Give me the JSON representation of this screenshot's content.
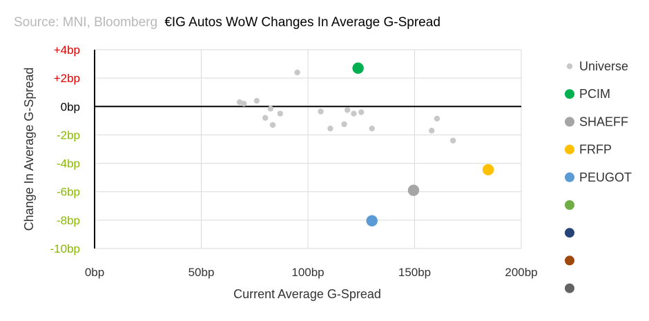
{
  "chart_data": {
    "type": "scatter",
    "title_source": "Source: MNI, Bloomberg",
    "title": "€IG Autos WoW Changes In Average G-Spread",
    "xlabel": "Current Average G-Spread",
    "ylabel": "Change In Average G-Spread",
    "xlim": [
      0,
      200
    ],
    "ylim": [
      -10,
      4
    ],
    "x_ticks": [
      {
        "value": 0,
        "label": "0bp"
      },
      {
        "value": 50,
        "label": "50bp"
      },
      {
        "value": 100,
        "label": "100bp"
      },
      {
        "value": 150,
        "label": "150bp"
      },
      {
        "value": 200,
        "label": "200bp"
      }
    ],
    "y_ticks": [
      {
        "value": 4,
        "label": "+4bp",
        "color": "#e00000"
      },
      {
        "value": 2,
        "label": "+2bp",
        "color": "#e00000"
      },
      {
        "value": 0,
        "label": "0bp",
        "color": "#000000"
      },
      {
        "value": -2,
        "label": "-2bp",
        "color": "#8ab800"
      },
      {
        "value": -4,
        "label": "-4bp",
        "color": "#8ab800"
      },
      {
        "value": -6,
        "label": "-6bp",
        "color": "#8ab800"
      },
      {
        "value": -8,
        "label": "-8bp",
        "color": "#8ab800"
      },
      {
        "value": -10,
        "label": "-10bp",
        "color": "#8ab800"
      }
    ],
    "grid": true,
    "legend_position": "right",
    "series": [
      {
        "name": "Universe",
        "color": "#c8c8c8",
        "size": "small",
        "points": [
          {
            "x": 68,
            "y": 0.3
          },
          {
            "x": 70,
            "y": 0.2
          },
          {
            "x": 76,
            "y": 0.4
          },
          {
            "x": 80,
            "y": -0.8
          },
          {
            "x": 82.5,
            "y": -0.15
          },
          {
            "x": 83.5,
            "y": -1.3
          },
          {
            "x": 87,
            "y": -0.5
          },
          {
            "x": 95,
            "y": 2.4
          },
          {
            "x": 106,
            "y": -0.35
          },
          {
            "x": 110.5,
            "y": -1.55
          },
          {
            "x": 117,
            "y": -1.25
          },
          {
            "x": 118.5,
            "y": -0.25
          },
          {
            "x": 121.5,
            "y": -0.5
          },
          {
            "x": 125,
            "y": -0.4
          },
          {
            "x": 130,
            "y": -1.55
          },
          {
            "x": 158,
            "y": -1.7
          },
          {
            "x": 160.5,
            "y": -0.85
          },
          {
            "x": 168,
            "y": -2.4
          }
        ]
      },
      {
        "name": "PCIM",
        "color": "#00b050",
        "size": "large",
        "points": [
          {
            "x": 123.5,
            "y": 2.7
          }
        ]
      },
      {
        "name": "SHAEFF",
        "color": "#a5a5a5",
        "size": "large",
        "points": [
          {
            "x": 149.5,
            "y": -5.9
          }
        ]
      },
      {
        "name": "FRFP",
        "color": "#ffc000",
        "size": "large",
        "points": [
          {
            "x": 184.5,
            "y": -4.45
          }
        ]
      },
      {
        "name": "PEUGOT",
        "color": "#5b9bd5",
        "size": "large",
        "points": [
          {
            "x": 130,
            "y": -8.05
          }
        ]
      },
      {
        "name": "",
        "color": "#70ad47",
        "size": "large",
        "points": []
      },
      {
        "name": "",
        "color": "#264478",
        "size": "large",
        "points": []
      },
      {
        "name": "",
        "color": "#9e480e",
        "size": "large",
        "points": []
      },
      {
        "name": "",
        "color": "#636363",
        "size": "large",
        "points": []
      }
    ]
  }
}
